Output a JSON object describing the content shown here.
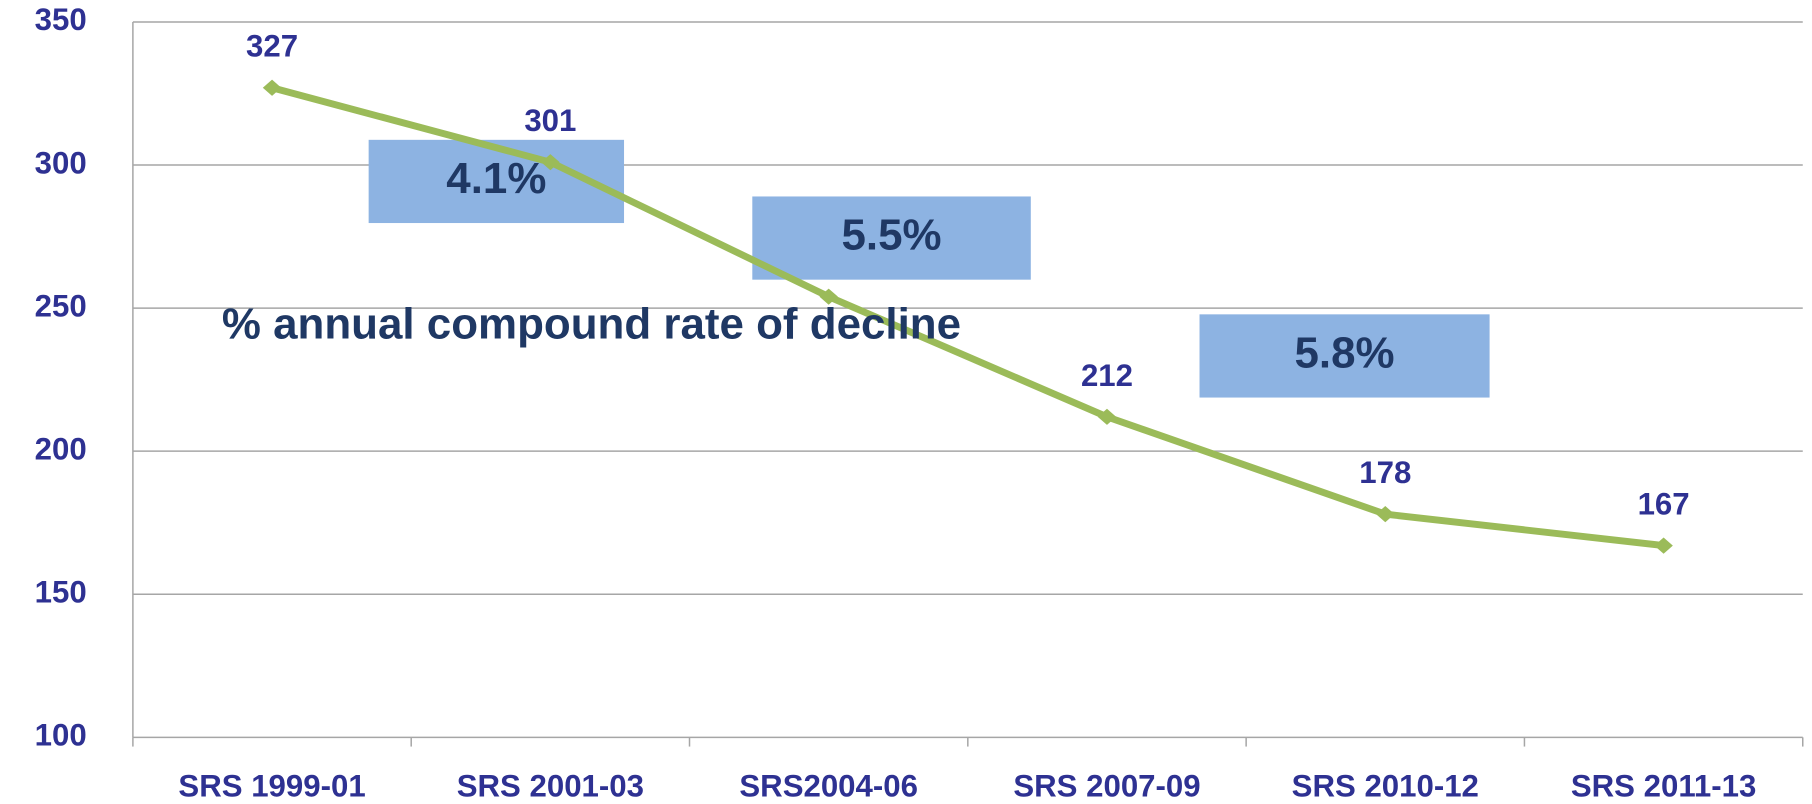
{
  "chart_data": {
    "type": "line",
    "categories": [
      "SRS 1999-01",
      "SRS 2001-03",
      "SRS2004-06",
      "SRS 2007-09",
      "SRS 2010-12",
      "SRS 2011-13"
    ],
    "values": [
      327,
      301,
      254,
      212,
      178,
      167
    ],
    "value_labels": [
      "327",
      "301",
      null,
      "212",
      "178",
      "167"
    ],
    "color": "#9bbb59",
    "ylim": [
      100,
      350
    ],
    "yticks": [
      100,
      150,
      200,
      250,
      300,
      350
    ],
    "grid": true,
    "annotations": [
      {
        "text": "4.1%",
        "box": true
      },
      {
        "text": "5.5%",
        "box": true
      },
      {
        "text": "5.8%",
        "box": true
      },
      {
        "text": "% annual compound rate of decline",
        "box": false
      }
    ]
  }
}
